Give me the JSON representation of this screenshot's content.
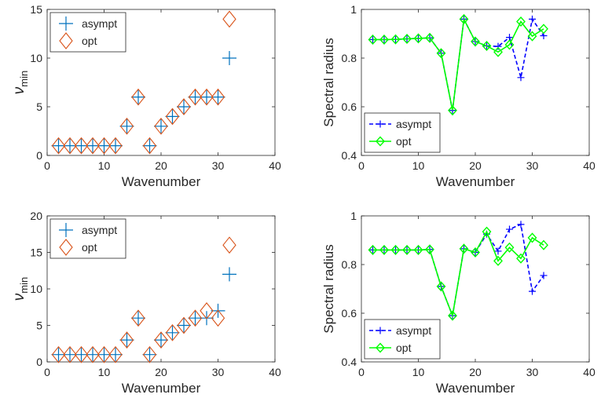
{
  "colors": {
    "asympt_marker": "#0072BD",
    "opt_marker": "#D95319",
    "asympt_line": "#0000FF",
    "opt_line": "#00FF00",
    "axis": "#262626"
  },
  "chart_data": [
    {
      "type": "scatter",
      "position": "top-left",
      "xlabel": "Wavenumber",
      "ylabel_main": "ν",
      "ylabel_sub": "min",
      "xlim": [
        0,
        40
      ],
      "ylim": [
        0,
        15
      ],
      "xticks": [
        "0",
        "10",
        "20",
        "30",
        "40"
      ],
      "yticks": [
        "0",
        "5",
        "10",
        "15"
      ],
      "legend": "top-left",
      "series": [
        {
          "name": "asympt",
          "marker": "plus",
          "x": [
            2,
            4,
            6,
            8,
            10,
            12,
            14,
            16,
            18,
            20,
            22,
            24,
            26,
            28,
            30,
            32
          ],
          "y": [
            1,
            1,
            1,
            1,
            1,
            1,
            3,
            6,
            1,
            3,
            4,
            5,
            6,
            6,
            6,
            10
          ]
        },
        {
          "name": "opt",
          "marker": "diamond",
          "x": [
            2,
            4,
            6,
            8,
            10,
            12,
            14,
            16,
            18,
            20,
            22,
            24,
            26,
            28,
            30,
            32
          ],
          "y": [
            1,
            1,
            1,
            1,
            1,
            1,
            3,
            6,
            1,
            3,
            4,
            5,
            6,
            6,
            6,
            14
          ]
        }
      ]
    },
    {
      "type": "line",
      "position": "top-right",
      "xlabel": "Wavenumber",
      "ylabel": "Spectral radius",
      "xlim": [
        0,
        40
      ],
      "ylim": [
        0.4,
        1
      ],
      "xticks": [
        "0",
        "10",
        "20",
        "30",
        "40"
      ],
      "yticks": [
        "0.4",
        "0.6",
        "0.8",
        "1"
      ],
      "legend": "bottom-left",
      "series": [
        {
          "name": "asympt",
          "marker": "plus",
          "dashed": true,
          "x": [
            2,
            4,
            6,
            8,
            10,
            12,
            14,
            16,
            18,
            20,
            22,
            24,
            26,
            28,
            30,
            32
          ],
          "y": [
            0.876,
            0.876,
            0.877,
            0.879,
            0.881,
            0.883,
            0.82,
            0.585,
            0.96,
            0.868,
            0.85,
            0.848,
            0.885,
            0.72,
            0.96,
            0.892
          ]
        },
        {
          "name": "opt",
          "marker": "diamond",
          "dashed": false,
          "x": [
            2,
            4,
            6,
            8,
            10,
            12,
            14,
            16,
            18,
            20,
            22,
            24,
            26,
            28,
            30,
            32
          ],
          "y": [
            0.876,
            0.876,
            0.877,
            0.879,
            0.881,
            0.883,
            0.82,
            0.585,
            0.96,
            0.868,
            0.85,
            0.825,
            0.855,
            0.95,
            0.89,
            0.92
          ]
        }
      ]
    },
    {
      "type": "scatter",
      "position": "bottom-left",
      "xlabel": "Wavenumber",
      "ylabel_main": "ν",
      "ylabel_sub": "min",
      "xlim": [
        0,
        40
      ],
      "ylim": [
        0,
        20
      ],
      "xticks": [
        "0",
        "10",
        "20",
        "30",
        "40"
      ],
      "yticks": [
        "0",
        "5",
        "10",
        "15",
        "20"
      ],
      "legend": "top-left",
      "series": [
        {
          "name": "asympt",
          "marker": "plus",
          "x": [
            2,
            4,
            6,
            8,
            10,
            12,
            14,
            16,
            18,
            20,
            22,
            24,
            26,
            28,
            30,
            32
          ],
          "y": [
            1,
            1,
            1,
            1,
            1,
            1,
            3,
            6,
            1,
            3,
            4,
            5,
            6,
            6,
            7,
            12
          ]
        },
        {
          "name": "opt",
          "marker": "diamond",
          "x": [
            2,
            4,
            6,
            8,
            10,
            12,
            14,
            16,
            18,
            20,
            22,
            24,
            26,
            28,
            30,
            32
          ],
          "y": [
            1,
            1,
            1,
            1,
            1,
            1,
            3,
            6,
            1,
            3,
            4,
            5,
            6,
            7,
            6,
            16
          ]
        }
      ]
    },
    {
      "type": "line",
      "position": "bottom-right",
      "xlabel": "Wavenumber",
      "ylabel": "Spectral radius",
      "xlim": [
        0,
        40
      ],
      "ylim": [
        0.4,
        1
      ],
      "xticks": [
        "0",
        "10",
        "20",
        "30",
        "40"
      ],
      "yticks": [
        "0.4",
        "0.6",
        "0.8",
        "1"
      ],
      "legend": "bottom-left",
      "series": [
        {
          "name": "asympt",
          "marker": "plus",
          "dashed": true,
          "x": [
            2,
            4,
            6,
            8,
            10,
            12,
            14,
            16,
            18,
            20,
            22,
            24,
            26,
            28,
            30,
            32
          ],
          "y": [
            0.86,
            0.86,
            0.86,
            0.86,
            0.86,
            0.862,
            0.71,
            0.59,
            0.865,
            0.85,
            0.925,
            0.855,
            0.945,
            0.965,
            0.69,
            0.755
          ]
        },
        {
          "name": "opt",
          "marker": "diamond",
          "dashed": false,
          "x": [
            2,
            4,
            6,
            8,
            10,
            12,
            14,
            16,
            18,
            20,
            22,
            24,
            26,
            28,
            30,
            32
          ],
          "y": [
            0.86,
            0.86,
            0.86,
            0.86,
            0.86,
            0.862,
            0.71,
            0.59,
            0.865,
            0.85,
            0.935,
            0.815,
            0.87,
            0.825,
            0.91,
            0.88
          ]
        }
      ]
    }
  ]
}
